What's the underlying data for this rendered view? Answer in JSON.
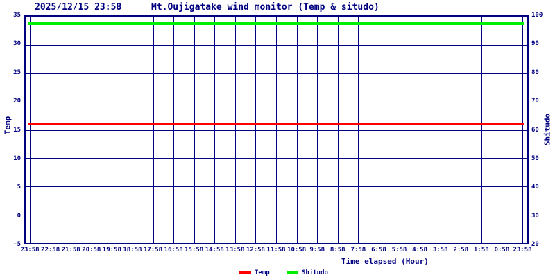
{
  "colors": {
    "axis": "#000080",
    "background": "#ffffff",
    "temp_line": "#ff0000",
    "shitudo_line": "#00ee00"
  },
  "header": {
    "timestamp": "2025/12/15 23:58",
    "title": "Mt.Oujigatake wind monitor (Temp & situdo)"
  },
  "chart_data": {
    "type": "line",
    "title": "Mt.Oujigatake wind monitor (Temp & situdo)",
    "timestamp": "2025/12/15 23:58",
    "xlabel": "Time elapsed (Hour)",
    "ylabel_left": "Temp",
    "ylabel_right": "Shitudo",
    "y_left_range": [
      -5,
      35
    ],
    "y_right_range": [
      20,
      100
    ],
    "y_left_ticks": [
      35,
      30,
      25,
      20,
      15,
      10,
      5,
      0,
      -5
    ],
    "y_right_ticks": [
      100,
      90,
      80,
      70,
      60,
      50,
      40,
      30,
      20
    ],
    "x_ticks": [
      "23:58",
      "22:58",
      "21:58",
      "20:58",
      "19:58",
      "18:58",
      "17:58",
      "16:58",
      "15:58",
      "14:58",
      "13:58",
      "12:58",
      "11:58",
      "10:58",
      "9:58",
      "8:58",
      "7:58",
      "6:58",
      "5:58",
      "4:58",
      "3:58",
      "2:58",
      "1:58",
      "0:58",
      "23:58"
    ],
    "grid": true,
    "legend_position": "bottom",
    "series": [
      {
        "name": "Temp",
        "axis": "left",
        "color": "#ff0000",
        "constant_value": 16.0,
        "values": [
          16,
          16,
          16,
          16,
          16,
          16,
          16,
          16,
          16,
          16,
          16,
          16,
          16,
          16,
          16,
          16,
          16,
          16,
          16,
          16,
          16,
          16,
          16,
          16,
          16
        ]
      },
      {
        "name": "Shitudo",
        "axis": "right",
        "color": "#00ee00",
        "constant_value": 97.5,
        "values": [
          97.5,
          97.5,
          97.5,
          97.5,
          97.5,
          97.5,
          97.5,
          97.5,
          97.5,
          97.5,
          97.5,
          97.5,
          97.5,
          97.5,
          97.5,
          97.5,
          97.5,
          97.5,
          97.5,
          97.5,
          97.5,
          97.5,
          97.5,
          97.5,
          97.5
        ]
      }
    ]
  }
}
